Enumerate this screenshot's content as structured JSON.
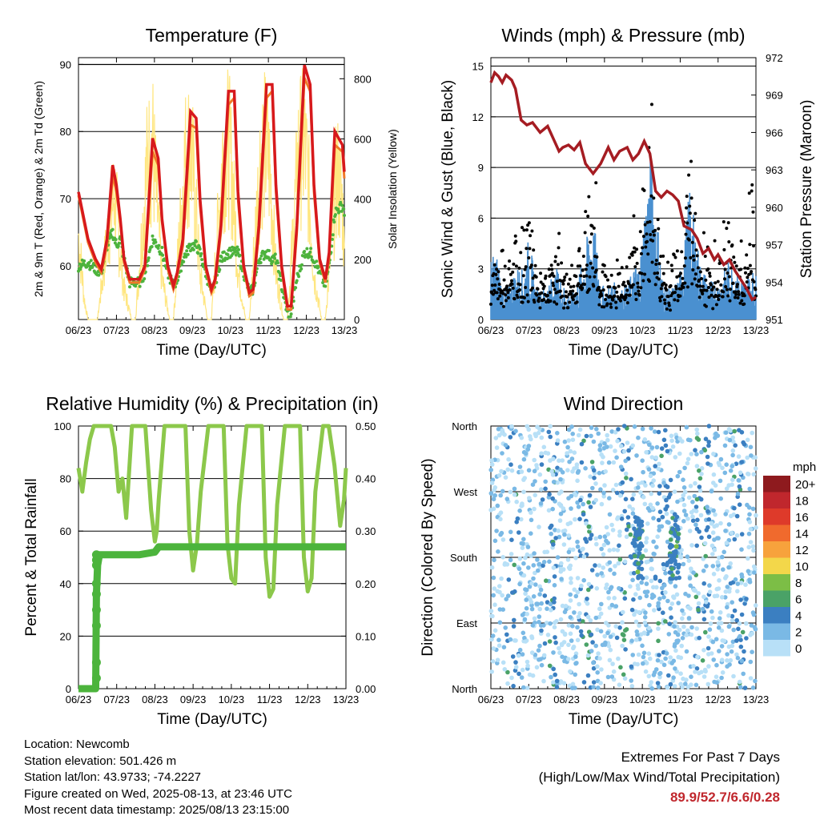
{
  "colors": {
    "red": "#d7191c",
    "orange": "#f07a28",
    "green": "#4db33d",
    "yellow": "#ffe680",
    "blue": "#4a90d0",
    "maroon": "#a51c22",
    "rh_green": "#8cc84b",
    "precip_green": "#4cb43c",
    "extremes": "#c0272d"
  },
  "chart_data": [
    {
      "type": "line",
      "title": "Temperature (F)",
      "xlabel": "Time (Day/UTC)",
      "ylabel": "2m & 9m T (Red, Orange) & 2m Td (Green)",
      "ylabel_right": "Solar Insolation (Yellow)",
      "x_ticks": [
        "06/23",
        "07/23",
        "08/23",
        "09/23",
        "10/23",
        "11/23",
        "12/23",
        "13/23"
      ],
      "ylim": [
        52,
        91
      ],
      "yticks": [
        60,
        70,
        80,
        90
      ],
      "ylim_right": [
        0,
        870
      ],
      "yticks_right": [
        0,
        200,
        400,
        600,
        800
      ],
      "series": [
        {
          "color": "red",
          "x": [
            0,
            0.25,
            0.45,
            0.6,
            0.75,
            0.9,
            1.0,
            1.1,
            1.2,
            1.35,
            1.6,
            1.75,
            1.95,
            2.1,
            2.2,
            2.35,
            2.5,
            2.6,
            2.75,
            2.95,
            3.1,
            3.2,
            3.35,
            3.5,
            3.6,
            3.75,
            3.95,
            4.1,
            4.2,
            4.35,
            4.5,
            4.6,
            4.75,
            4.95,
            5.1,
            5.2,
            5.35,
            5.5,
            5.6,
            5.75,
            5.95,
            6.1,
            6.2,
            6.35,
            6.5,
            6.6,
            6.75,
            6.95,
            7.0
          ],
          "y": [
            71,
            64,
            61,
            59.5,
            64,
            75,
            72,
            67,
            61,
            58,
            58,
            60,
            79,
            76,
            67,
            60,
            57,
            59,
            64,
            83,
            82,
            70,
            60,
            56.5,
            58,
            66,
            86,
            86,
            71,
            60,
            56,
            56.5,
            66,
            87,
            87,
            72,
            60,
            54,
            54,
            66,
            89.9,
            87,
            72,
            61,
            58,
            62,
            80,
            78,
            74
          ]
        },
        {
          "color": "orange",
          "x": [
            0,
            0.25,
            0.45,
            0.6,
            0.75,
            0.9,
            1.0,
            1.1,
            1.2,
            1.35,
            1.6,
            1.75,
            1.95,
            2.1,
            2.2,
            2.35,
            2.5,
            2.6,
            2.75,
            2.95,
            3.1,
            3.2,
            3.35,
            3.5,
            3.6,
            3.75,
            3.95,
            4.1,
            4.2,
            4.35,
            4.5,
            4.6,
            4.75,
            4.95,
            5.1,
            5.2,
            5.35,
            5.5,
            5.6,
            5.75,
            5.95,
            6.1,
            6.2,
            6.35,
            6.5,
            6.6,
            6.75,
            6.95,
            7.0
          ],
          "y": [
            70.5,
            63.5,
            60.5,
            59,
            63,
            73.5,
            71,
            66.5,
            60.5,
            57.5,
            57.5,
            59.5,
            77,
            75,
            66.5,
            59.5,
            56.5,
            58.5,
            63,
            81,
            80.5,
            69,
            59.5,
            56,
            57.5,
            65,
            84,
            85,
            70,
            59.5,
            55.5,
            56,
            65,
            85,
            86,
            71,
            59.5,
            53.5,
            53.5,
            65,
            88,
            86,
            71,
            60.5,
            57.5,
            61,
            78,
            77,
            73
          ]
        },
        {
          "color": "green",
          "x": [
            0,
            0.25,
            0.45,
            0.6,
            0.75,
            0.9,
            1.0,
            1.1,
            1.2,
            1.35,
            1.6,
            1.75,
            1.95,
            2.1,
            2.2,
            2.35,
            2.5,
            2.6,
            2.75,
            2.95,
            3.1,
            3.2,
            3.35,
            3.5,
            3.6,
            3.75,
            3.95,
            4.1,
            4.2,
            4.35,
            4.5,
            4.6,
            4.75,
            4.95,
            5.1,
            5.2,
            5.35,
            5.5,
            5.6,
            5.75,
            5.95,
            6.1,
            6.2,
            6.35,
            6.5,
            6.6,
            6.75,
            6.95,
            7.0
          ],
          "y": [
            60,
            60.5,
            59.5,
            59,
            63,
            65,
            63,
            64,
            61,
            57.5,
            57.5,
            59,
            64,
            63,
            62,
            59,
            57,
            58,
            61,
            63,
            63,
            62,
            59,
            56,
            57.5,
            61,
            62,
            62,
            62,
            59,
            56,
            56.5,
            61,
            62,
            61,
            61,
            57,
            53,
            53,
            58,
            62,
            62,
            61,
            59,
            57,
            60,
            68,
            69,
            68
          ]
        },
        {
          "color": "yellow",
          "axis": "right",
          "x": [
            0,
            0.05,
            0.15,
            0.25,
            0.3,
            0.5,
            0.8,
            0.95,
            1.05,
            1.2,
            1.4,
            1.5,
            1.8,
            1.95,
            2.05,
            2.2,
            2.4,
            2.5,
            2.8,
            2.95,
            3.05,
            3.2,
            3.4,
            3.5,
            3.8,
            3.95,
            4.05,
            4.2,
            4.4,
            4.5,
            4.8,
            4.95,
            5.05,
            5.2,
            5.4,
            5.5,
            5.8,
            5.95,
            6.05,
            6.2,
            6.4,
            6.5,
            6.8,
            6.95,
            7.0
          ],
          "y": [
            420,
            320,
            100,
            0,
            0,
            0,
            460,
            620,
            420,
            150,
            0,
            0,
            740,
            860,
            600,
            200,
            0,
            0,
            780,
            850,
            650,
            220,
            0,
            0,
            800,
            860,
            700,
            240,
            0,
            0,
            820,
            850,
            700,
            230,
            0,
            0,
            830,
            850,
            680,
            220,
            0,
            0,
            720,
            560,
            300
          ]
        }
      ]
    },
    {
      "type": "line",
      "title": "Winds (mph) & Pressure (mb)",
      "xlabel": "Time (Day/UTC)",
      "ylabel": "Sonic Wind & Gust (Blue, Black)",
      "ylabel_right": "Station Pressure (Maroon)",
      "x_ticks": [
        "06/23",
        "07/23",
        "08/23",
        "09/23",
        "10/23",
        "11/23",
        "12/23",
        "13/23"
      ],
      "ylim": [
        0,
        15.5
      ],
      "yticks": [
        0,
        3,
        6,
        9,
        12,
        15
      ],
      "ylim_right": [
        951,
        972
      ],
      "yticks_right": [
        951,
        954,
        957,
        960,
        963,
        966,
        969,
        972
      ],
      "wind_mean_mph": [
        2.0,
        2.3,
        1.2,
        1.0,
        1.5,
        1.8,
        1.6,
        3.0,
        1.1,
        1.0,
        1.2,
        1.4,
        1.7,
        1.2,
        0.9,
        1.0,
        1.6,
        2.2,
        3.5,
        2.8,
        1.2,
        1.0,
        1.3,
        1.1,
        1.0,
        1.3,
        1.8,
        2.0,
        4.2,
        5.5,
        3.8,
        1.5,
        1.0,
        1.1,
        1.4,
        2.4,
        4.5,
        3.0,
        1.8,
        1.5,
        1.3,
        1.2,
        1.6,
        2.0,
        1.8,
        1.5,
        1.3,
        1.7,
        1.5
      ],
      "wind_gust_mph": [
        5.0,
        6.5,
        4.2,
        3.8,
        4.5,
        5.5,
        5.0,
        7.5,
        3.6,
        3.0,
        3.8,
        4.5,
        5.5,
        3.5,
        3.0,
        3.2,
        5.0,
        7.0,
        9.5,
        7.5,
        3.5,
        3.0,
        4.0,
        3.6,
        3.2,
        4.0,
        5.5,
        6.0,
        10.5,
        12.5,
        9.0,
        4.5,
        3.2,
        3.5,
        4.5,
        7.0,
        11.5,
        9.0,
        5.5,
        4.5,
        4.0,
        3.6,
        5.0,
        6.5,
        5.5,
        4.5,
        4.0,
        8.5,
        5.0
      ],
      "pressure_x": [
        0,
        0.1,
        0.2,
        0.3,
        0.4,
        0.55,
        0.65,
        0.8,
        0.95,
        1.1,
        1.3,
        1.5,
        1.65,
        1.8,
        1.9,
        2.05,
        2.2,
        2.35,
        2.5,
        2.7,
        2.9,
        3.1,
        3.25,
        3.4,
        3.6,
        3.75,
        3.9,
        4.05,
        4.2,
        4.35,
        4.5,
        4.65,
        4.8,
        4.95,
        5.1,
        5.3,
        5.45,
        5.6,
        5.75,
        5.9,
        6.0,
        6.15,
        6.3,
        6.45,
        6.6,
        6.75,
        6.9,
        7.0
      ],
      "pressure_mb": [
        970,
        970.8,
        970.5,
        970,
        970.6,
        970.2,
        969.5,
        967,
        966.6,
        966.8,
        966,
        966.5,
        965.5,
        964.5,
        964.8,
        965,
        964.6,
        965.2,
        963.5,
        962.7,
        963.5,
        964.8,
        963.8,
        964.5,
        964.8,
        963.8,
        964.3,
        965.3,
        964.3,
        961.3,
        960.8,
        961.3,
        961,
        960.5,
        958.5,
        958.2,
        957.5,
        956.3,
        956.7,
        955.8,
        956.2,
        955.4,
        955.8,
        954.9,
        954.2,
        953.5,
        952.6,
        952.8
      ]
    },
    {
      "type": "line",
      "title": "Relative Humidity (%) & Precipitation (in)",
      "xlabel": "Time (Day/UTC)",
      "ylabel": "Percent & Total Rainfall",
      "x_ticks": [
        "06/23",
        "07/23",
        "08/23",
        "09/23",
        "10/23",
        "11/23",
        "12/23",
        "13/23"
      ],
      "ylim": [
        0,
        100
      ],
      "yticks": [
        0,
        20,
        40,
        60,
        80,
        100
      ],
      "ylim_right": [
        0.0,
        0.5
      ],
      "yticks_right_labels": [
        "0.00",
        "0.10",
        "0.20",
        "0.30",
        "0.40",
        "0.50"
      ],
      "series": [
        {
          "color": "rh_green",
          "x": [
            0,
            0.1,
            0.2,
            0.3,
            0.4,
            0.6,
            0.85,
            0.95,
            1.05,
            1.15,
            1.25,
            1.4,
            1.6,
            1.75,
            1.9,
            2.0,
            2.05,
            2.1,
            2.25,
            2.4,
            2.6,
            2.8,
            2.9,
            3.0,
            3.1,
            3.2,
            3.4,
            3.6,
            3.8,
            3.9,
            4.0,
            4.1,
            4.2,
            4.4,
            4.6,
            4.8,
            4.9,
            5.0,
            5.1,
            5.2,
            5.4,
            5.6,
            5.8,
            5.9,
            6.0,
            6.1,
            6.2,
            6.4,
            6.55,
            6.7,
            6.85,
            6.95,
            7.0
          ],
          "y": [
            84,
            75,
            86,
            95,
            100,
            100,
            100,
            92,
            75,
            80,
            65,
            100,
            100,
            100,
            68,
            56,
            60,
            72,
            100,
            100,
            100,
            100,
            60,
            45,
            55,
            75,
            100,
            100,
            100,
            55,
            42,
            40,
            70,
            100,
            100,
            100,
            50,
            35,
            38,
            70,
            100,
            100,
            100,
            50,
            37,
            42,
            75,
            100,
            100,
            85,
            62,
            72,
            84
          ]
        },
        {
          "color": "precip_green",
          "axis": "right",
          "x": [
            0,
            0.15,
            0.3,
            0.45,
            0.47,
            0.5,
            0.55,
            0.7,
            1.2,
            1.6,
            2.0,
            2.1,
            3.0,
            4.0,
            5.0,
            6.0,
            7.0
          ],
          "y": [
            0,
            0,
            0,
            0,
            0.18,
            0.235,
            0.255,
            0.255,
            0.255,
            0.255,
            0.26,
            0.27,
            0.27,
            0.27,
            0.27,
            0.27,
            0.27
          ]
        }
      ]
    },
    {
      "type": "scatter",
      "title": "Wind Direction",
      "xlabel": "Time (Day/UTC)",
      "ylabel": "Direction (Colored By Speed)",
      "x_ticks": [
        "06/23",
        "07/23",
        "08/23",
        "09/23",
        "10/23",
        "11/23",
        "12/23",
        "13/23"
      ],
      "y_ticks": [
        "North",
        "East",
        "South",
        "West",
        "North"
      ],
      "ylim": [
        0,
        360
      ],
      "legend": {
        "title": "mph",
        "placement": "right",
        "labels": [
          "20+",
          "18",
          "16",
          "14",
          "12",
          "10",
          "8",
          "6",
          "4",
          "2",
          "0"
        ],
        "colors": [
          "#8e1a1e",
          "#c0272d",
          "#de3a2a",
          "#f06a2d",
          "#f7a23c",
          "#f3d74a",
          "#7cbe46",
          "#4aa267",
          "#3b7fc1",
          "#7ab9e5",
          "#b8e0f7"
        ]
      }
    }
  ],
  "info": {
    "location": "Location: Newcomb",
    "elevation": "Station elevation: 501.426 m",
    "latlon": "Station lat/lon: 43.9733; -74.2227",
    "created": "Figure created on Wed, 2025-08-13, at 23:46 UTC",
    "recent": "Most recent data timestamp: 2025/08/13 23:15:00"
  },
  "extremes": {
    "line1": "Extremes For Past 7 Days",
    "line2": "(High/Low/Max Wind/Total Precipitation)",
    "values": "89.9/52.7/6.6/0.28"
  }
}
